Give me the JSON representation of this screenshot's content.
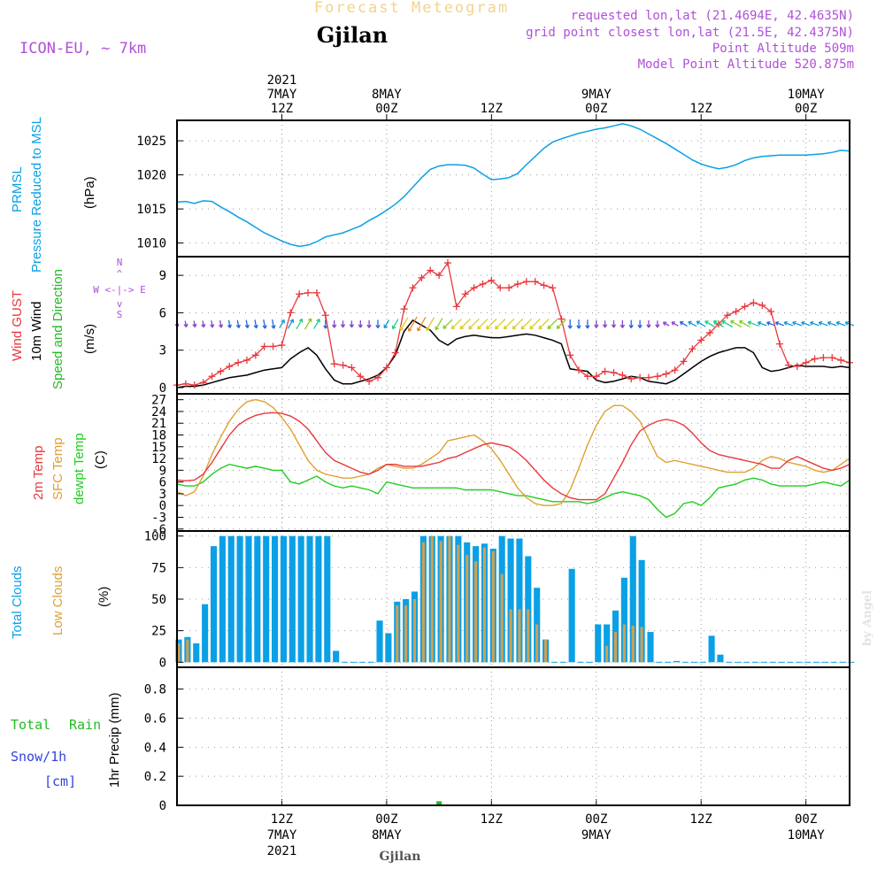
{
  "header": {
    "title": "Forecast Meteogram",
    "location": "Gjilan",
    "model": "ICON-EU, ~ 7km",
    "requested": "requested lon,lat (21.4694E, 42.4635N)",
    "grid_point": "grid point closest lon,lat (21.5E, 42.4375N)",
    "point_altitude": "Point Altitude 509m",
    "model_altitude": "Model Point Altitude 520.875m",
    "footer_location": "Gjilan",
    "watermark": "by Angel"
  },
  "colors": {
    "pressure": "#0aa0e6",
    "gust": "#e8383d",
    "wind": "#000000",
    "wind_dir": "#22bb22",
    "compass": "#b050d8",
    "temp2m": "#e8383d",
    "sfc_temp": "#e0a030",
    "dewpt": "#22cc22",
    "total_clouds": "#0aa0e6",
    "low_clouds": "#d0a050",
    "rain": "#22bb22",
    "snow": "#3344dd"
  },
  "time_axis": {
    "top": [
      {
        "label": "2021\n7MAY\n12Z",
        "hour": 12
      },
      {
        "label": "8MAY\n00Z",
        "hour": 24
      },
      {
        "label": "12Z",
        "hour": 36
      },
      {
        "label": "9MAY\n00Z",
        "hour": 48
      },
      {
        "label": "12Z",
        "hour": 60
      },
      {
        "label": "10MAY\n00Z",
        "hour": 72
      }
    ],
    "bottom": [
      {
        "label": "12Z\n7MAY\n2021",
        "hour": 12
      },
      {
        "label": "00Z\n8MAY",
        "hour": 24
      },
      {
        "label": "12Z",
        "hour": 36
      },
      {
        "label": "00Z\n9MAY",
        "hour": 48
      },
      {
        "label": "12Z",
        "hour": 60
      },
      {
        "label": "00Z\n10MAY",
        "hour": 72
      }
    ],
    "xlim": [
      0,
      77
    ]
  },
  "panels": {
    "pressure": {
      "ylabel_a": "PRMSL",
      "ylabel_b": "Pressure Reduced to MSL",
      "unit": "(hPa)"
    },
    "wind": {
      "ylabel_a": "Wind GUST",
      "ylabel_b": "10m Wind",
      "ylabel_c": "Speed and Direction",
      "unit": "(m/s)",
      "compass_n": "N",
      "compass_s": "S",
      "compass_we": "W <-|-> E"
    },
    "temp": {
      "ylabel_a": "2m Temp",
      "ylabel_b": "SFC Temp",
      "ylabel_c": "dewpt Temp",
      "unit": "(C)"
    },
    "clouds": {
      "ylabel_a": "Total Clouds",
      "ylabel_b": "Low Clouds",
      "unit": "(%)"
    },
    "precip": {
      "ylabel_total": "Total",
      "ylabel_rain": "Rain",
      "ylabel_snow": "Snow/1h",
      "ylabel_cm": "[cm]",
      "ylabel_precip": "1hr Precip (mm)"
    }
  },
  "chart_data": [
    {
      "type": "line",
      "name": "pressure",
      "x": [
        0,
        1,
        2,
        3,
        4,
        5,
        6,
        7,
        8,
        9,
        10,
        11,
        12,
        13,
        14,
        15,
        16,
        17,
        18,
        19,
        20,
        21,
        22,
        23,
        24,
        25,
        26,
        27,
        28,
        29,
        30,
        31,
        32,
        33,
        34,
        35,
        36,
        37,
        38,
        39,
        40,
        41,
        42,
        43,
        44,
        45,
        46,
        47,
        48,
        49,
        50,
        51,
        52,
        53,
        54,
        55,
        56,
        57,
        58,
        59,
        60,
        61,
        62,
        63,
        64,
        65,
        66,
        67,
        68,
        69,
        70,
        71,
        72,
        73,
        74,
        75,
        76,
        77
      ],
      "series": [
        {
          "name": "PRMSL",
          "values": [
            1016.0,
            1016.1,
            1015.8,
            1016.2,
            1016.1,
            1015.3,
            1014.6,
            1013.8,
            1013.1,
            1012.3,
            1011.5,
            1010.9,
            1010.3,
            1009.8,
            1009.5,
            1009.7,
            1010.2,
            1010.9,
            1011.2,
            1011.5,
            1012.0,
            1012.5,
            1013.3,
            1014.0,
            1014.8,
            1015.7,
            1016.8,
            1018.2,
            1019.6,
            1020.8,
            1021.3,
            1021.5,
            1021.5,
            1021.4,
            1021.0,
            1020.1,
            1019.3,
            1019.4,
            1019.6,
            1020.2,
            1021.5,
            1022.7,
            1023.9,
            1024.8,
            1025.3,
            1025.7,
            1026.1,
            1026.4,
            1026.7,
            1026.9,
            1027.2,
            1027.5,
            1027.2,
            1026.7,
            1026.0,
            1025.3,
            1024.6,
            1023.8,
            1023.0,
            1022.2,
            1021.6,
            1021.2,
            1020.9,
            1021.1,
            1021.5,
            1022.1,
            1022.5,
            1022.7,
            1022.8,
            1022.9,
            1022.9,
            1022.9,
            1022.9,
            1023.0,
            1023.1,
            1023.3,
            1023.6,
            1023.5
          ]
        }
      ],
      "ylim": [
        1008,
        1028
      ],
      "yticks": [
        1010,
        1015,
        1020,
        1025
      ]
    },
    {
      "type": "line",
      "name": "wind",
      "x": [
        0,
        1,
        2,
        3,
        4,
        5,
        6,
        7,
        8,
        9,
        10,
        11,
        12,
        13,
        14,
        15,
        16,
        17,
        18,
        19,
        20,
        21,
        22,
        23,
        24,
        25,
        26,
        27,
        28,
        29,
        30,
        31,
        32,
        33,
        34,
        35,
        36,
        37,
        38,
        39,
        40,
        41,
        42,
        43,
        44,
        45,
        46,
        47,
        48,
        49,
        50,
        51,
        52,
        53,
        54,
        55,
        56,
        57,
        58,
        59,
        60,
        61,
        62,
        63,
        64,
        65,
        66,
        67,
        68,
        69,
        70,
        71,
        72,
        73,
        74,
        75,
        76,
        77
      ],
      "series": [
        {
          "name": "Wind GUST",
          "values": [
            0.2,
            0.3,
            0.2,
            0.4,
            0.9,
            1.3,
            1.7,
            2.0,
            2.2,
            2.6,
            3.3,
            3.3,
            3.4,
            6.0,
            7.5,
            7.6,
            7.6,
            5.8,
            1.9,
            1.8,
            1.6,
            0.9,
            0.5,
            0.8,
            1.6,
            2.8,
            6.3,
            8.0,
            8.8,
            9.4,
            9.0,
            10.0,
            6.5,
            7.5,
            8.0,
            8.3,
            8.6,
            8.0,
            8.0,
            8.3,
            8.5,
            8.5,
            8.2,
            8.0,
            5.5,
            2.6,
            1.4,
            0.9,
            0.9,
            1.3,
            1.2,
            1.0,
            0.7,
            0.8,
            0.8,
            0.9,
            1.1,
            1.4,
            2.1,
            3.1,
            3.8,
            4.4,
            5.1,
            5.8,
            6.1,
            6.5,
            6.8,
            6.6,
            6.1,
            3.5,
            1.8,
            1.7,
            2.0,
            2.3,
            2.4,
            2.4,
            2.2,
            2.0
          ]
        },
        {
          "name": "10m Wind",
          "values": [
            0.0,
            0.1,
            0.1,
            0.2,
            0.4,
            0.6,
            0.8,
            0.9,
            1.0,
            1.2,
            1.4,
            1.5,
            1.6,
            2.3,
            2.8,
            3.2,
            2.6,
            1.5,
            0.6,
            0.3,
            0.3,
            0.5,
            0.7,
            1.0,
            1.6,
            2.6,
            4.5,
            5.4,
            5.0,
            4.6,
            3.8,
            3.4,
            3.9,
            4.1,
            4.2,
            4.1,
            4.0,
            4.0,
            4.1,
            4.2,
            4.3,
            4.2,
            4.0,
            3.8,
            3.5,
            1.5,
            1.4,
            1.3,
            0.6,
            0.4,
            0.5,
            0.7,
            0.9,
            0.8,
            0.5,
            0.4,
            0.3,
            0.6,
            1.1,
            1.6,
            2.1,
            2.5,
            2.8,
            3.0,
            3.2,
            3.2,
            2.8,
            1.6,
            1.3,
            1.4,
            1.6,
            1.8,
            1.7,
            1.7,
            1.7,
            1.6,
            1.7,
            1.6
          ]
        }
      ],
      "ylim": [
        -0.5,
        10.5
      ],
      "yticks": [
        0,
        3,
        6,
        9
      ]
    },
    {
      "type": "line",
      "name": "temperature",
      "x": [
        0,
        1,
        2,
        3,
        4,
        5,
        6,
        7,
        8,
        9,
        10,
        11,
        12,
        13,
        14,
        15,
        16,
        17,
        18,
        19,
        20,
        21,
        22,
        23,
        24,
        25,
        26,
        27,
        28,
        29,
        30,
        31,
        32,
        33,
        34,
        35,
        36,
        37,
        38,
        39,
        40,
        41,
        42,
        43,
        44,
        45,
        46,
        47,
        48,
        49,
        50,
        51,
        52,
        53,
        54,
        55,
        56,
        57,
        58,
        59,
        60,
        61,
        62,
        63,
        64,
        65,
        66,
        67,
        68,
        69,
        70,
        71,
        72,
        73,
        74,
        75,
        76,
        77
      ],
      "series": [
        {
          "name": "2m Temp",
          "values": [
            6.5,
            6.3,
            6.5,
            8.0,
            11.0,
            14.5,
            18.0,
            20.5,
            22.0,
            23.0,
            23.5,
            23.7,
            23.5,
            22.8,
            21.5,
            19.5,
            16.5,
            13.5,
            11.5,
            10.5,
            9.5,
            8.5,
            8.0,
            9.0,
            10.5,
            10.5,
            10.0,
            10.0,
            10.0,
            10.5,
            11.0,
            12.0,
            12.5,
            13.5,
            14.5,
            15.5,
            16.0,
            15.5,
            15.0,
            13.5,
            11.5,
            9.0,
            6.5,
            4.5,
            3.0,
            2.0,
            1.5,
            1.5,
            1.5,
            3.0,
            7.0,
            11.0,
            15.5,
            19.0,
            20.5,
            21.5,
            22.0,
            21.5,
            20.5,
            18.5,
            16.0,
            14.0,
            13.0,
            12.5,
            12.0,
            11.5,
            11.0,
            10.5,
            9.5,
            9.5,
            11.5,
            12.5,
            11.5,
            10.5,
            9.5,
            9.0,
            9.5,
            10.5
          ]
        },
        {
          "name": "SFC Temp",
          "values": [
            3.5,
            2.5,
            3.5,
            7.5,
            13.0,
            17.5,
            21.5,
            24.5,
            26.5,
            27.0,
            26.5,
            25.0,
            22.5,
            19.5,
            15.5,
            11.5,
            9.0,
            8.0,
            7.5,
            7.0,
            7.0,
            7.5,
            8.0,
            9.5,
            10.5,
            10.0,
            9.5,
            9.5,
            10.5,
            12.0,
            13.5,
            16.5,
            17.0,
            17.5,
            18.0,
            16.5,
            14.5,
            11.5,
            8.0,
            4.5,
            2.0,
            0.5,
            0.0,
            0.0,
            0.5,
            4.0,
            9.5,
            15.5,
            20.5,
            24.0,
            25.5,
            25.5,
            24.0,
            21.5,
            17.0,
            12.5,
            11.0,
            11.5,
            11.0,
            10.5,
            10.0,
            9.5,
            9.0,
            8.5,
            8.5,
            8.5,
            9.5,
            11.5,
            12.5,
            12.0,
            11.0,
            10.5,
            10.0,
            9.0,
            8.5,
            9.0,
            10.5,
            12.0
          ]
        },
        {
          "name": "dewpt Temp",
          "values": [
            5.5,
            5.0,
            5.0,
            6.0,
            8.0,
            9.5,
            10.5,
            10.0,
            9.5,
            10.0,
            9.5,
            9.0,
            9.0,
            6.0,
            5.5,
            6.5,
            7.5,
            6.0,
            5.0,
            4.5,
            5.0,
            4.5,
            4.0,
            3.0,
            6.0,
            5.5,
            5.0,
            4.5,
            4.5,
            4.5,
            4.5,
            4.5,
            4.5,
            4.0,
            4.0,
            4.0,
            4.0,
            3.5,
            3.0,
            2.5,
            2.5,
            2.0,
            1.5,
            1.0,
            1.0,
            1.0,
            1.0,
            0.5,
            1.0,
            2.0,
            3.0,
            3.5,
            3.0,
            2.5,
            1.5,
            -1.0,
            -3.0,
            -2.0,
            0.5,
            1.0,
            0.0,
            2.0,
            4.5,
            5.0,
            5.5,
            6.5,
            7.0,
            6.5,
            5.5,
            5.0,
            5.0,
            5.0,
            5.0,
            5.5,
            6.0,
            5.5,
            5.0,
            6.5
          ]
        }
      ],
      "ylim": [
        -6.5,
        28.5
      ],
      "yticks": [
        -6,
        -3,
        0,
        3,
        6,
        9,
        12,
        15,
        18,
        21,
        24,
        27
      ]
    },
    {
      "type": "bar",
      "name": "clouds",
      "x": [
        0,
        1,
        2,
        3,
        4,
        5,
        6,
        7,
        8,
        9,
        10,
        11,
        12,
        13,
        14,
        15,
        16,
        17,
        18,
        19,
        20,
        21,
        22,
        23,
        24,
        25,
        26,
        27,
        28,
        29,
        30,
        31,
        32,
        33,
        34,
        35,
        36,
        37,
        38,
        39,
        40,
        41,
        42,
        43,
        44,
        45,
        46,
        47,
        48,
        49,
        50,
        51,
        52,
        53,
        54,
        55,
        56,
        57,
        58,
        59,
        60,
        61,
        62,
        63,
        64,
        65,
        66,
        67,
        68,
        69,
        70,
        71,
        72,
        73,
        74,
        75,
        76,
        77
      ],
      "series": [
        {
          "name": "Total Clouds",
          "values": [
            18,
            20,
            15,
            46,
            92,
            100,
            100,
            100,
            100,
            100,
            100,
            100,
            100,
            100,
            100,
            100,
            100,
            100,
            9,
            0,
            0,
            0,
            0,
            33,
            23,
            48,
            50,
            56,
            100,
            100,
            100,
            100,
            100,
            95,
            92,
            94,
            90,
            100,
            98,
            98,
            84,
            59,
            18,
            0,
            0,
            74,
            0,
            0,
            30,
            30,
            41,
            67,
            100,
            81,
            24,
            0,
            0,
            1,
            0,
            0,
            0,
            21,
            6,
            0,
            0,
            0,
            0,
            0,
            0,
            0,
            0,
            0,
            0,
            0,
            0,
            0,
            0,
            0
          ]
        },
        {
          "name": "Low Clouds",
          "values": [
            15,
            18,
            0,
            0,
            0,
            0,
            0,
            0,
            0,
            0,
            0,
            0,
            0,
            0,
            0,
            0,
            0,
            0,
            0,
            0,
            0,
            0,
            0,
            0,
            0,
            45,
            45,
            50,
            95,
            100,
            96,
            100,
            93,
            85,
            80,
            91,
            88,
            70,
            42,
            42,
            42,
            30,
            18,
            0,
            0,
            0,
            0,
            0,
            0,
            13,
            24,
            30,
            29,
            28,
            0,
            0,
            0,
            0,
            0,
            0,
            0,
            0,
            0,
            0,
            0,
            0,
            0,
            0,
            0,
            0,
            0,
            0,
            0,
            0,
            0,
            0,
            0,
            0
          ]
        }
      ],
      "ylim": [
        -4,
        104
      ],
      "yticks": [
        0,
        25,
        50,
        75,
        100
      ]
    },
    {
      "type": "bar",
      "name": "precipitation",
      "x": [
        30
      ],
      "series": [
        {
          "name": "1hr Precip",
          "values": [
            0.01
          ]
        }
      ],
      "ylim": [
        0,
        0.95
      ],
      "yticks": [
        0,
        0.2,
        0.4,
        0.6,
        0.8
      ]
    }
  ]
}
